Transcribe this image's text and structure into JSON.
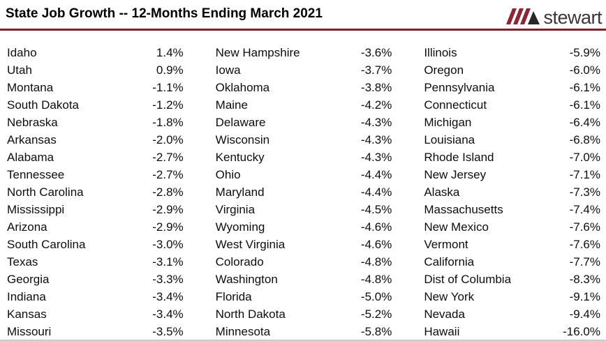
{
  "header": {
    "title": "State Job Growth -- 12-Months Ending March 2021",
    "logo_text": "stewart",
    "logo_slash_color": "#8c2534",
    "logo_triangle_color": "#2b2627",
    "rule_color": "#7a212b"
  },
  "chart_data": {
    "type": "table",
    "title": "State Job Growth -- 12-Months Ending March 2021",
    "unit": "percent",
    "columns": [
      {
        "rows": [
          {
            "state": "Idaho",
            "value": "1.4%"
          },
          {
            "state": "Utah",
            "value": "0.9%"
          },
          {
            "state": "Montana",
            "value": "-1.1%"
          },
          {
            "state": "South Dakota",
            "value": "-1.2%"
          },
          {
            "state": "Nebraska",
            "value": "-1.8%"
          },
          {
            "state": "Arkansas",
            "value": "-2.0%"
          },
          {
            "state": "Alabama",
            "value": "-2.7%"
          },
          {
            "state": "Tennessee",
            "value": "-2.7%"
          },
          {
            "state": "North Carolina",
            "value": "-2.8%"
          },
          {
            "state": "Mississippi",
            "value": "-2.9%"
          },
          {
            "state": "Arizona",
            "value": "-2.9%"
          },
          {
            "state": "South Carolina",
            "value": "-3.0%"
          },
          {
            "state": "Texas",
            "value": "-3.1%"
          },
          {
            "state": "Georgia",
            "value": "-3.3%"
          },
          {
            "state": "Indiana",
            "value": "-3.4%"
          },
          {
            "state": "Kansas",
            "value": "-3.4%"
          },
          {
            "state": "Missouri",
            "value": "-3.5%"
          }
        ]
      },
      {
        "rows": [
          {
            "state": "New Hampshire",
            "value": "-3.6%"
          },
          {
            "state": "Iowa",
            "value": "-3.7%"
          },
          {
            "state": "Oklahoma",
            "value": "-3.8%"
          },
          {
            "state": "Maine",
            "value": "-4.2%"
          },
          {
            "state": "Delaware",
            "value": "-4.3%"
          },
          {
            "state": "Wisconsin",
            "value": "-4.3%"
          },
          {
            "state": "Kentucky",
            "value": "-4.3%"
          },
          {
            "state": "Ohio",
            "value": "-4.4%"
          },
          {
            "state": "Maryland",
            "value": "-4.4%"
          },
          {
            "state": "Virginia",
            "value": "-4.5%"
          },
          {
            "state": "Wyoming",
            "value": "-4.6%"
          },
          {
            "state": "West Virginia",
            "value": "-4.6%"
          },
          {
            "state": "Colorado",
            "value": "-4.8%"
          },
          {
            "state": "Washington",
            "value": "-4.8%"
          },
          {
            "state": "Florida",
            "value": "-5.0%"
          },
          {
            "state": "North Dakota",
            "value": "-5.2%"
          },
          {
            "state": "Minnesota",
            "value": "-5.8%"
          }
        ]
      },
      {
        "rows": [
          {
            "state": "Illinois",
            "value": "-5.9%"
          },
          {
            "state": "Oregon",
            "value": "-6.0%"
          },
          {
            "state": "Pennsylvania",
            "value": "-6.1%"
          },
          {
            "state": "Connecticut",
            "value": "-6.1%"
          },
          {
            "state": "Michigan",
            "value": "-6.4%"
          },
          {
            "state": "Louisiana",
            "value": "-6.8%"
          },
          {
            "state": "Rhode Island",
            "value": "-7.0%"
          },
          {
            "state": "New Jersey",
            "value": "-7.1%"
          },
          {
            "state": "Alaska",
            "value": "-7.3%"
          },
          {
            "state": "Massachusetts",
            "value": "-7.4%"
          },
          {
            "state": "New Mexico",
            "value": "-7.6%"
          },
          {
            "state": "Vermont",
            "value": "-7.6%"
          },
          {
            "state": "California",
            "value": "-7.7%"
          },
          {
            "state": "Dist of Columbia",
            "value": "-8.3%"
          },
          {
            "state": "New York",
            "value": "-9.1%"
          },
          {
            "state": "Nevada",
            "value": "-9.4%"
          },
          {
            "state": "Hawaii",
            "value": "-16.0%"
          }
        ]
      }
    ]
  }
}
